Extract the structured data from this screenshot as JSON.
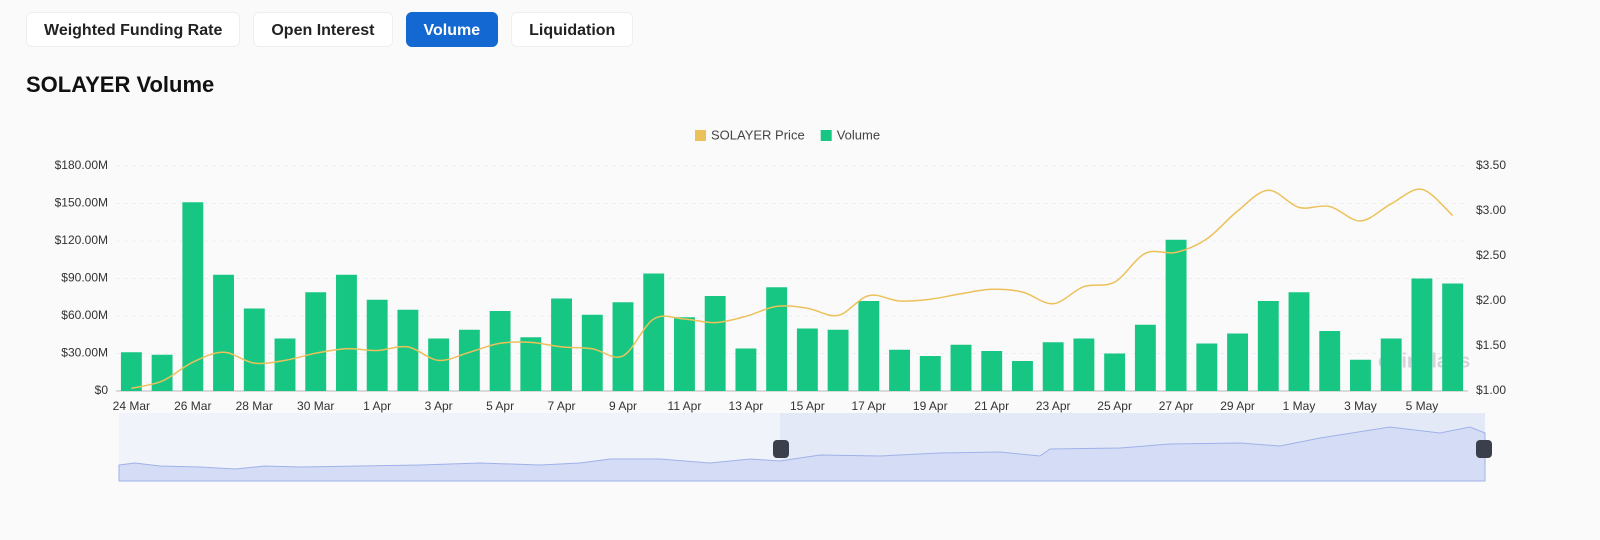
{
  "tabs": [
    "Weighted Funding Rate",
    "Open Interest",
    "Volume",
    "Liquidation"
  ],
  "active_tab": 2,
  "heading": "SOLAYER Volume",
  "chart_data": {
    "type": "bar",
    "watermark": "coinglass",
    "categories": [
      "24 Mar",
      null,
      "26 Mar",
      null,
      "28 Mar",
      null,
      "30 Mar",
      null,
      "1 Apr",
      null,
      "3 Apr",
      null,
      "5 Apr",
      null,
      "7 Apr",
      null,
      "9 Apr",
      null,
      "11 Apr",
      null,
      "13 Apr",
      null,
      "15 Apr",
      null,
      "17 Apr",
      null,
      "19 Apr",
      null,
      "21 Apr",
      null,
      "23 Apr",
      null,
      "25 Apr",
      null,
      "27 Apr",
      null,
      "29 Apr",
      null,
      "1 May",
      null,
      "3 May",
      null,
      "5 May",
      null
    ],
    "series": [
      {
        "name": "SOLAYER Price",
        "type": "line",
        "axis": "y2",
        "color": "#ecc15a",
        "values": [
          1.03,
          1.11,
          1.32,
          1.43,
          1.31,
          1.34,
          1.42,
          1.47,
          1.45,
          1.49,
          1.34,
          1.43,
          1.53,
          1.54,
          1.49,
          1.47,
          1.39,
          1.8,
          1.8,
          1.76,
          1.83,
          1.94,
          1.92,
          1.84,
          2.06,
          2.0,
          2.02,
          2.08,
          2.13,
          2.1,
          1.97,
          2.16,
          2.21,
          2.53,
          2.54,
          2.69,
          3.0,
          3.23,
          3.04,
          3.05,
          2.89,
          3.08,
          3.24,
          2.95
        ]
      },
      {
        "name": "Volume",
        "type": "bar",
        "color": "#18c683",
        "values": [
          31000000,
          29000000,
          151000000,
          93000000,
          66000000,
          42000000,
          79000000,
          93000000,
          73000000,
          65000000,
          42000000,
          49000000,
          64000000,
          43000000,
          74000000,
          61000000,
          71000000,
          94000000,
          59000000,
          76000000,
          34000000,
          83000000,
          50000000,
          49000000,
          72000000,
          33000000,
          28000000,
          37000000,
          32000000,
          24000000,
          39000000,
          42000000,
          30000000,
          53000000,
          121000000,
          38000000,
          46000000,
          72000000,
          79000000,
          48000000,
          25000000,
          42000000,
          90000000,
          86000000
        ]
      }
    ],
    "ylim": [
      0,
      180000000
    ],
    "yticks": [
      {
        "value": 0,
        "label": "$0"
      },
      {
        "value": 30000000,
        "label": "$30.00M"
      },
      {
        "value": 60000000,
        "label": "$60.00M"
      },
      {
        "value": 90000000,
        "label": "$90.00M"
      },
      {
        "value": 120000000,
        "label": "$120.00M"
      },
      {
        "value": 150000000,
        "label": "$150.00M"
      },
      {
        "value": 180000000,
        "label": "$180.00M"
      }
    ],
    "y2lim": [
      1.0,
      3.5
    ],
    "y2ticks": [
      {
        "value": 1.0,
        "label": "$1.00"
      },
      {
        "value": 1.5,
        "label": "$1.50"
      },
      {
        "value": 2.0,
        "label": "$2.00"
      },
      {
        "value": 2.5,
        "label": "$2.50"
      },
      {
        "value": 3.0,
        "label": "$3.00"
      },
      {
        "value": 3.5,
        "label": "$3.50"
      }
    ],
    "grid": true,
    "legend": "top"
  }
}
